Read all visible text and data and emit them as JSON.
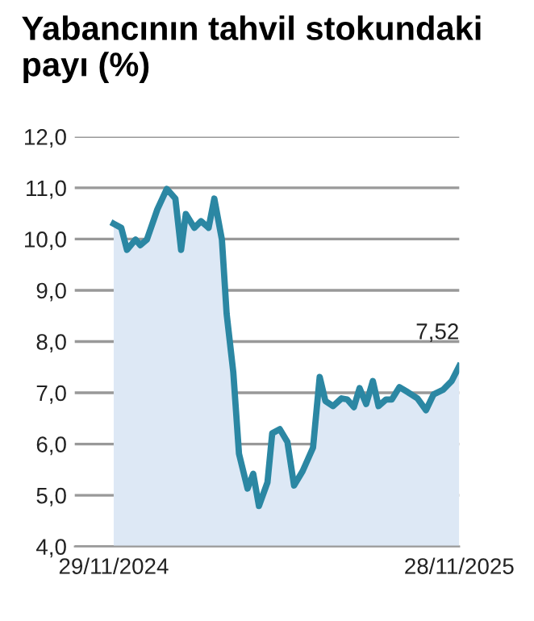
{
  "chart_data": {
    "type": "area",
    "title": "Yabancının tahvil stokundaki payı (%)",
    "x": [
      "2024-11-29",
      "2024-12-07",
      "2024-12-13",
      "2024-12-22",
      "2024-12-27",
      "2025-01-03",
      "2025-01-14",
      "2025-01-24",
      "2025-02-02",
      "2025-02-08",
      "2025-02-13",
      "2025-02-22",
      "2025-03-01",
      "2025-03-09",
      "2025-03-15",
      "2025-03-23",
      "2025-03-28",
      "2025-04-04",
      "2025-04-10",
      "2025-04-19",
      "2025-04-25",
      "2025-05-01",
      "2025-05-10",
      "2025-05-15",
      "2025-05-23",
      "2025-05-31",
      "2025-06-07",
      "2025-06-16",
      "2025-06-27",
      "2025-07-04",
      "2025-07-10",
      "2025-07-18",
      "2025-07-27",
      "2025-08-02",
      "2025-08-09",
      "2025-08-15",
      "2025-08-22",
      "2025-08-29",
      "2025-09-04",
      "2025-09-12",
      "2025-09-18",
      "2025-09-26",
      "2025-10-05",
      "2025-10-15",
      "2025-10-24",
      "2025-11-01",
      "2025-11-11",
      "2025-11-20",
      "2025-11-28"
    ],
    "series": [
      {
        "color": "#2b87a3",
        "values": [
          10.3,
          10.22,
          9.79,
          9.99,
          9.88,
          9.99,
          10.58,
          10.98,
          10.79,
          9.79,
          10.49,
          10.22,
          10.35,
          10.22,
          10.79,
          9.99,
          8.54,
          7.4,
          5.81,
          5.13,
          5.42,
          4.79,
          5.25,
          6.21,
          6.29,
          6.04,
          5.19,
          5.47,
          5.93,
          7.31,
          6.84,
          6.74,
          6.89,
          6.87,
          6.72,
          7.09,
          6.78,
          7.23,
          6.74,
          6.87,
          6.87,
          7.11,
          7.01,
          6.89,
          6.66,
          6.97,
          7.06,
          7.23,
          7.52
        ],
        "value_labels": [
          null,
          null,
          null,
          null,
          null,
          null,
          null,
          null,
          null,
          null,
          null,
          null,
          null,
          null,
          null,
          null,
          null,
          null,
          null,
          null,
          null,
          null,
          null,
          null,
          null,
          null,
          null,
          null,
          null,
          null,
          null,
          null,
          null,
          null,
          null,
          null,
          null,
          null,
          null,
          null,
          null,
          null,
          null,
          null,
          null,
          null,
          null,
          null,
          "7,52"
        ]
      }
    ],
    "xlim": [
      "2024-10-19",
      "2025-11-28"
    ],
    "xticks": [
      {
        "value": "2024-11-29",
        "label": "29/11/2024"
      },
      {
        "value": "2025-11-28",
        "label": "28/11/2025"
      }
    ],
    "ylim": [
      4,
      12
    ],
    "yticks": [
      {
        "value": 4,
        "label": "4,0"
      },
      {
        "value": 5,
        "label": "5,0"
      },
      {
        "value": 6,
        "label": "6,0"
      },
      {
        "value": 7,
        "label": "7,0"
      },
      {
        "value": 8,
        "label": "8,0"
      },
      {
        "value": 9,
        "label": "9,0"
      },
      {
        "value": 10,
        "label": "10,0"
      },
      {
        "value": 11,
        "label": "11,0"
      },
      {
        "value": 12,
        "label": "12,0"
      }
    ],
    "grid": "y",
    "legend": false,
    "marker": "none",
    "line_style": "solid"
  }
}
